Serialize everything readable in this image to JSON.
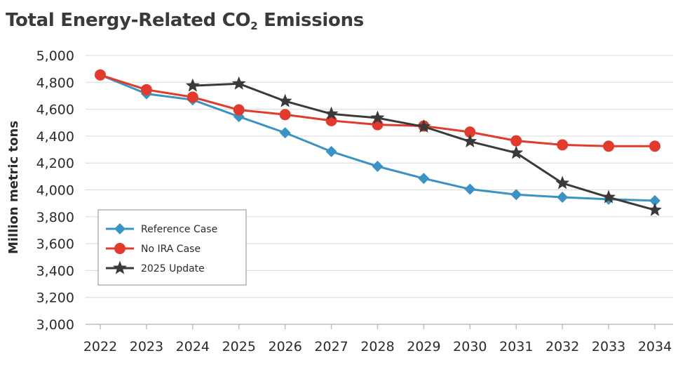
{
  "title": {
    "main": "Total Energy-Related CO",
    "subscript": "2",
    "suffix": " Emissions"
  },
  "chart_data": {
    "type": "line",
    "x": [
      2022,
      2023,
      2024,
      2025,
      2026,
      2027,
      2028,
      2029,
      2030,
      2031,
      2032,
      2033,
      2034
    ],
    "ylabel": "Million metric tons",
    "xlabel": "",
    "ylim": [
      3000,
      5000
    ],
    "yticks": [
      3000,
      3200,
      3400,
      3600,
      3800,
      4000,
      4200,
      4400,
      4600,
      4800,
      5000
    ],
    "ytick_labels": [
      "3,000",
      "3,200",
      "3,400",
      "3,600",
      "3,800",
      "4,000",
      "4,200",
      "4,400",
      "4,600",
      "4,800",
      "5,000"
    ],
    "grid": "horizontal",
    "legend_position": "bottom-left",
    "series": [
      {
        "name": "Reference Case",
        "color": "#3a93c2",
        "marker": "diamond",
        "x": [
          2022,
          2023,
          2024,
          2025,
          2026,
          2027,
          2028,
          2029,
          2030,
          2031,
          2032,
          2033,
          2034
        ],
        "values": [
          4855,
          4715,
          4670,
          4545,
          4425,
          4285,
          4175,
          4085,
          4005,
          3965,
          3945,
          3930,
          3920
        ]
      },
      {
        "name": "No IRA Case",
        "color": "#e03b2c",
        "marker": "circle",
        "x": [
          2022,
          2023,
          2024,
          2025,
          2026,
          2027,
          2028,
          2029,
          2030,
          2031,
          2032,
          2033,
          2034
        ],
        "values": [
          4855,
          4745,
          4690,
          4595,
          4560,
          4515,
          4485,
          4475,
          4430,
          4365,
          4335,
          4325,
          4325
        ]
      },
      {
        "name": "2025 Update",
        "color": "#3a3a3a",
        "marker": "star",
        "x": [
          2024,
          2025,
          2026,
          2027,
          2028,
          2029,
          2030,
          2031,
          2032,
          2033,
          2034
        ],
        "values": [
          4775,
          4790,
          4660,
          4565,
          4535,
          4470,
          4360,
          4275,
          4050,
          3945,
          3850
        ]
      }
    ]
  }
}
